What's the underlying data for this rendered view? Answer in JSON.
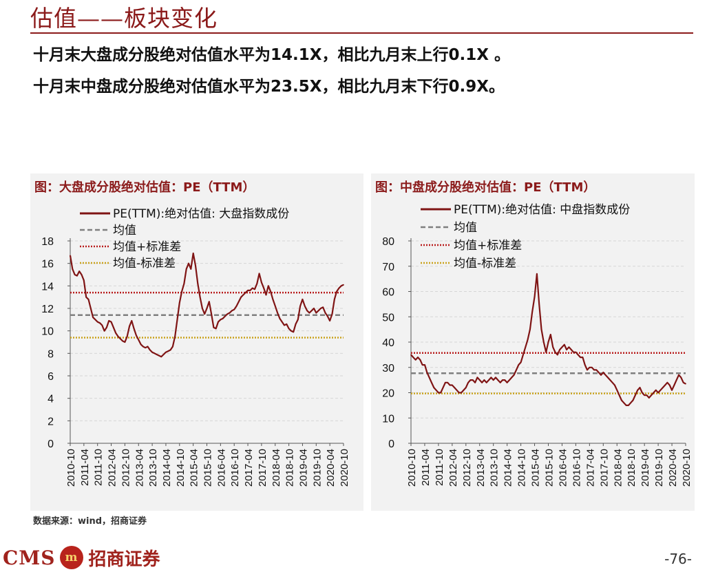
{
  "page": {
    "title": "估值——板块变化",
    "line1": "十月末大盘成分股绝对估值水平为14.1X，相比九月末上行0.1X 。",
    "line2": "十月末中盘成分股绝对估值水平为23.5X，相比九月末下行0.9X。",
    "source": "数据来源：wind，招商证券",
    "logo_text": "CMS",
    "logo_mark": "m",
    "logo_cn": "招商证券",
    "page_number": "-76-"
  },
  "colors": {
    "pe": "#7f1414",
    "mean": "#7f7f7f",
    "plus_std": "#b81c1c",
    "minus_std": "#c9a21b",
    "accent": "#8b1a1a"
  },
  "chart_data": [
    {
      "type": "line",
      "title": "图：大盘成分股绝对估值：PE（TTM）",
      "x_ticks": [
        "2010-10",
        "2011-04",
        "2011-10",
        "2012-04",
        "2012-10",
        "2013-04",
        "2013-10",
        "2014-04",
        "2014-10",
        "2015-04",
        "2015-10",
        "2016-04",
        "2016-10",
        "2017-04",
        "2017-10",
        "2018-04",
        "2018-10",
        "2019-04",
        "2019-10",
        "2020-04",
        "2020-10"
      ],
      "ylim": [
        0,
        18
      ],
      "y_ticks": [
        0,
        2,
        4,
        6,
        8,
        10,
        12,
        14,
        16,
        18
      ],
      "legend_position": "top",
      "series": [
        {
          "name": "PE(TTM):绝对估值: 大盘指数成份",
          "style": "solid",
          "x": [
            "2010-10",
            "2010-11",
            "2010-12",
            "2011-01",
            "2011-02",
            "2011-03",
            "2011-04",
            "2011-05",
            "2011-06",
            "2011-07",
            "2011-08",
            "2011-09",
            "2011-10",
            "2011-11",
            "2011-12",
            "2012-01",
            "2012-02",
            "2012-03",
            "2012-04",
            "2012-05",
            "2012-06",
            "2012-07",
            "2012-08",
            "2012-09",
            "2012-10",
            "2012-11",
            "2012-12",
            "2013-01",
            "2013-02",
            "2013-03",
            "2013-04",
            "2013-05",
            "2013-06",
            "2013-07",
            "2013-08",
            "2013-09",
            "2013-10",
            "2013-11",
            "2013-12",
            "2014-01",
            "2014-02",
            "2014-03",
            "2014-04",
            "2014-05",
            "2014-06",
            "2014-07",
            "2014-08",
            "2014-09",
            "2014-10",
            "2014-11",
            "2014-12",
            "2015-01",
            "2015-02",
            "2015-03",
            "2015-04",
            "2015-05",
            "2015-06",
            "2015-07",
            "2015-08",
            "2015-09",
            "2015-10",
            "2015-11",
            "2015-12",
            "2016-01",
            "2016-02",
            "2016-03",
            "2016-04",
            "2016-05",
            "2016-06",
            "2016-07",
            "2016-08",
            "2016-09",
            "2016-10",
            "2016-11",
            "2016-12",
            "2017-01",
            "2017-02",
            "2017-03",
            "2017-04",
            "2017-05",
            "2017-06",
            "2017-07",
            "2017-08",
            "2017-09",
            "2017-10",
            "2017-11",
            "2017-12",
            "2018-01",
            "2018-02",
            "2018-03",
            "2018-04",
            "2018-05",
            "2018-06",
            "2018-07",
            "2018-08",
            "2018-09",
            "2018-10",
            "2018-11",
            "2018-12",
            "2019-01",
            "2019-02",
            "2019-03",
            "2019-04",
            "2019-05",
            "2019-06",
            "2019-07",
            "2019-08",
            "2019-09",
            "2019-10",
            "2019-11",
            "2019-12",
            "2020-01",
            "2020-02",
            "2020-03",
            "2020-04",
            "2020-05",
            "2020-06",
            "2020-07",
            "2020-08",
            "2020-09",
            "2020-10"
          ],
          "values": [
            16.7,
            15.5,
            15.0,
            14.9,
            15.3,
            15.0,
            14.5,
            13.0,
            12.8,
            12.0,
            11.2,
            11.0,
            10.8,
            10.7,
            10.5,
            10.0,
            10.3,
            10.9,
            10.8,
            10.3,
            9.8,
            9.5,
            9.3,
            9.1,
            9.0,
            9.5,
            10.4,
            10.9,
            10.2,
            9.6,
            9.2,
            8.8,
            8.6,
            8.5,
            8.6,
            8.3,
            8.1,
            8.0,
            7.9,
            7.8,
            7.7,
            7.9,
            8.1,
            8.2,
            8.3,
            8.6,
            9.5,
            11.0,
            12.5,
            13.5,
            14.2,
            15.5,
            16.0,
            15.5,
            16.9,
            15.8,
            14.2,
            13.0,
            12.0,
            11.5,
            12.0,
            12.6,
            11.5,
            10.3,
            10.2,
            10.8,
            11.0,
            11.1,
            11.3,
            11.5,
            11.6,
            11.8,
            11.9,
            12.2,
            12.6,
            13.0,
            13.2,
            13.4,
            13.6,
            13.6,
            13.8,
            13.7,
            14.2,
            15.1,
            14.3,
            13.8,
            13.2,
            14.0,
            13.5,
            12.8,
            12.2,
            11.6,
            11.1,
            10.8,
            10.5,
            10.6,
            10.2,
            10.0,
            9.9,
            10.6,
            11.0,
            12.2,
            12.8,
            12.2,
            11.8,
            11.6,
            11.8,
            12.0,
            11.6,
            11.8,
            12.0,
            12.1,
            11.6,
            11.3,
            10.9,
            11.5,
            12.8,
            13.5,
            13.8,
            14.0,
            14.1
          ]
        },
        {
          "name": "均值",
          "style": "dashed",
          "constant": 11.4
        },
        {
          "name": "均值+标准差",
          "style": "dotted",
          "constant": 13.4
        },
        {
          "name": "均值-标准差",
          "style": "dotted",
          "constant": 9.4
        }
      ]
    },
    {
      "type": "line",
      "title": "图：中盘成分股绝对估值：PE（TTM）",
      "x_ticks": [
        "2010-10",
        "2011-04",
        "2011-10",
        "2012-04",
        "2012-10",
        "2013-04",
        "2013-10",
        "2014-04",
        "2014-10",
        "2015-04",
        "2015-10",
        "2016-04",
        "2016-10",
        "2017-04",
        "2017-10",
        "2018-04",
        "2018-10",
        "2019-04",
        "2019-10",
        "2020-04",
        "2020-10"
      ],
      "ylim": [
        0,
        80
      ],
      "y_ticks": [
        0,
        10,
        20,
        30,
        40,
        50,
        60,
        70,
        80
      ],
      "legend_position": "top",
      "series": [
        {
          "name": "PE(TTM):绝对估值: 中盘指数成份",
          "style": "solid",
          "x": [
            "2010-10",
            "2010-11",
            "2010-12",
            "2011-01",
            "2011-02",
            "2011-03",
            "2011-04",
            "2011-05",
            "2011-06",
            "2011-07",
            "2011-08",
            "2011-09",
            "2011-10",
            "2011-11",
            "2011-12",
            "2012-01",
            "2012-02",
            "2012-03",
            "2012-04",
            "2012-05",
            "2012-06",
            "2012-07",
            "2012-08",
            "2012-09",
            "2012-10",
            "2012-11",
            "2012-12",
            "2013-01",
            "2013-02",
            "2013-03",
            "2013-04",
            "2013-05",
            "2013-06",
            "2013-07",
            "2013-08",
            "2013-09",
            "2013-10",
            "2013-11",
            "2013-12",
            "2014-01",
            "2014-02",
            "2014-03",
            "2014-04",
            "2014-05",
            "2014-06",
            "2014-07",
            "2014-08",
            "2014-09",
            "2014-10",
            "2014-11",
            "2014-12",
            "2015-01",
            "2015-02",
            "2015-03",
            "2015-04",
            "2015-05",
            "2015-06",
            "2015-07",
            "2015-08",
            "2015-09",
            "2015-10",
            "2015-11",
            "2015-12",
            "2016-01",
            "2016-02",
            "2016-03",
            "2016-04",
            "2016-05",
            "2016-06",
            "2016-07",
            "2016-08",
            "2016-09",
            "2016-10",
            "2016-11",
            "2016-12",
            "2017-01",
            "2017-02",
            "2017-03",
            "2017-04",
            "2017-05",
            "2017-06",
            "2017-07",
            "2017-08",
            "2017-09",
            "2017-10",
            "2017-11",
            "2017-12",
            "2018-01",
            "2018-02",
            "2018-03",
            "2018-04",
            "2018-05",
            "2018-06",
            "2018-07",
            "2018-08",
            "2018-09",
            "2018-10",
            "2018-11",
            "2018-12",
            "2019-01",
            "2019-02",
            "2019-03",
            "2019-04",
            "2019-05",
            "2019-06",
            "2019-07",
            "2019-08",
            "2019-09",
            "2019-10",
            "2019-11",
            "2019-12",
            "2020-01",
            "2020-02",
            "2020-03",
            "2020-04",
            "2020-05",
            "2020-06",
            "2020-07",
            "2020-08",
            "2020-09",
            "2020-10"
          ],
          "values": [
            35,
            34,
            33,
            34,
            33,
            31,
            31,
            28,
            26,
            24,
            22,
            21,
            20,
            20,
            22,
            24,
            24,
            23,
            23,
            22,
            21,
            20,
            20,
            21,
            22,
            24,
            25,
            25,
            24,
            26,
            25,
            24,
            25,
            24,
            25,
            26,
            25,
            26,
            25,
            24,
            25,
            25,
            24,
            25,
            26,
            27,
            29,
            31,
            32,
            35,
            38,
            41,
            45,
            52,
            58,
            67,
            55,
            45,
            40,
            36,
            40,
            43,
            38,
            36,
            35,
            37,
            38,
            39,
            37,
            38,
            37,
            36,
            36,
            35,
            34,
            34,
            31,
            29,
            30,
            30,
            29,
            29,
            28,
            27,
            28,
            27,
            26,
            25,
            24,
            23,
            21,
            19,
            17,
            16,
            15,
            15,
            16,
            17,
            19,
            21,
            22,
            20,
            19,
            19,
            18,
            19,
            20,
            21,
            20,
            21,
            22,
            23,
            24,
            23,
            21,
            23,
            25,
            27,
            26,
            24,
            23.5
          ]
        },
        {
          "name": "均值",
          "style": "dashed",
          "constant": 27.7
        },
        {
          "name": "均值+标准差",
          "style": "dotted",
          "constant": 35.7
        },
        {
          "name": "均值-标准差",
          "style": "dotted",
          "constant": 19.7
        }
      ]
    }
  ]
}
